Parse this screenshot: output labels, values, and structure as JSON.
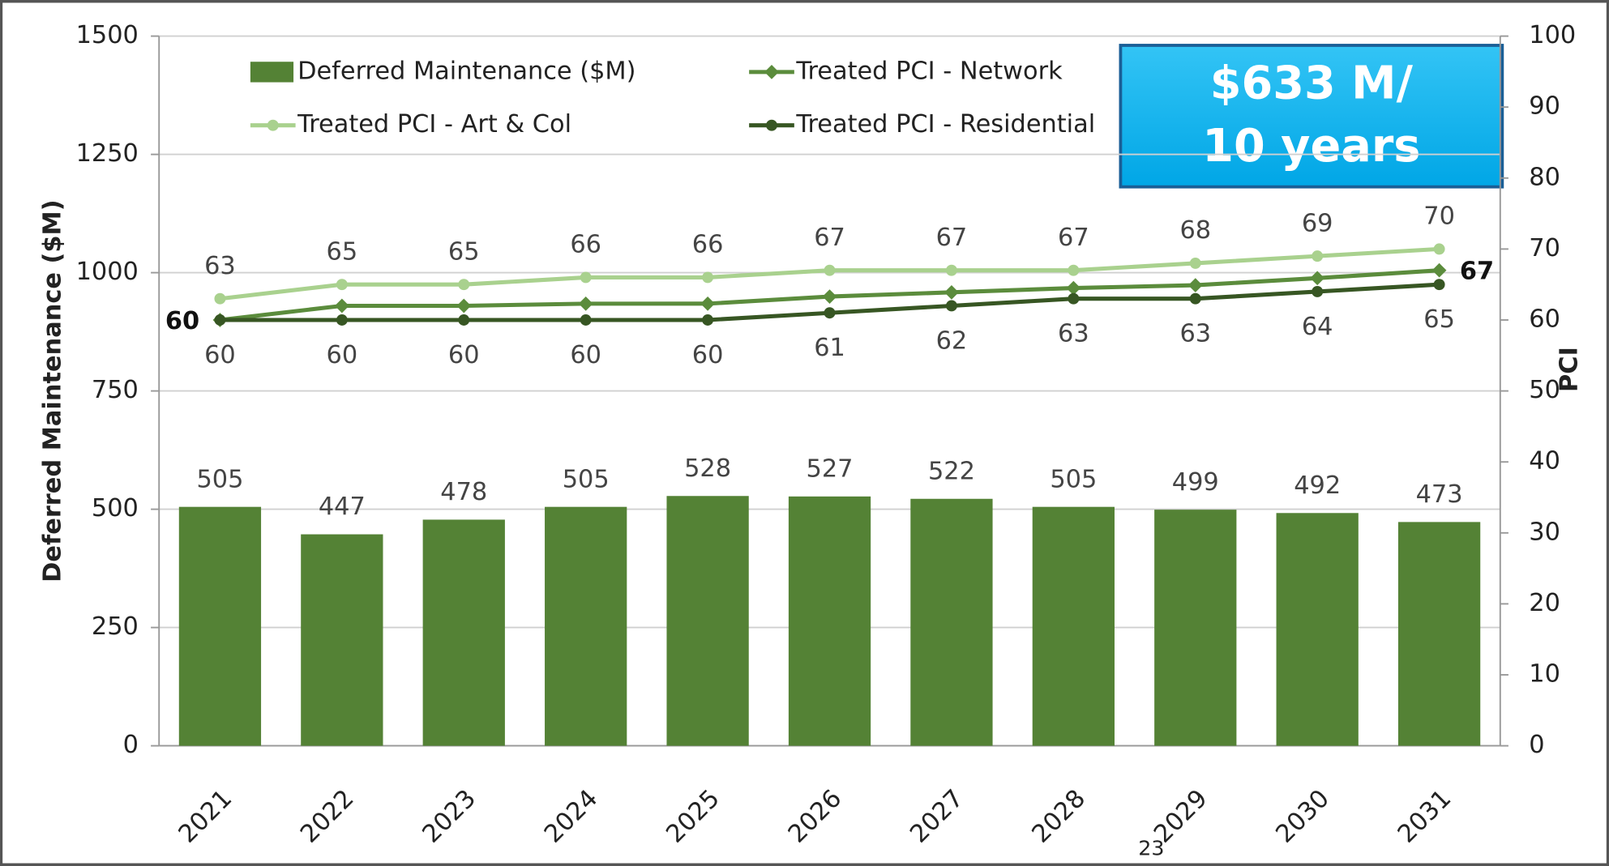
{
  "chart_data": {
    "type": "bar",
    "y_label": "Deferred Maintenance ($M)",
    "y2_label": "PCI",
    "categories": [
      "2021",
      "2022",
      "2023",
      "2024",
      "2025",
      "2026",
      "2027",
      "2028",
      "2029",
      "2030",
      "2031"
    ],
    "series": [
      {
        "name": "Deferred Maintenance ($M)",
        "type": "bar",
        "color": "#548235",
        "axis": "y",
        "values": [
          505,
          447,
          478,
          505,
          528,
          527,
          522,
          505,
          499,
          492,
          473
        ]
      },
      {
        "name": "Treated PCI - Network",
        "type": "line",
        "color": "#5b8c3c",
        "axis": "y2",
        "values": [
          60,
          62,
          62,
          62.3,
          62.3,
          63.3,
          63.9,
          64.5,
          64.9,
          65.9,
          67
        ],
        "value_labels": [
          "60",
          null,
          null,
          null,
          null,
          null,
          null,
          null,
          null,
          null,
          "67"
        ]
      },
      {
        "name": "Treated PCI - Art & Col",
        "type": "line",
        "color": "#a9d18e",
        "axis": "y2",
        "values": [
          63,
          65,
          65,
          66,
          66,
          67,
          67,
          67,
          68,
          69,
          70
        ]
      },
      {
        "name": "Treated PCI - Residential",
        "type": "line",
        "color": "#375623",
        "axis": "y2",
        "values": [
          60,
          60,
          60,
          60,
          60,
          61,
          62,
          63,
          63,
          64,
          65
        ]
      }
    ],
    "ylim": [
      0,
      1500
    ],
    "yticks": [
      0,
      250,
      500,
      750,
      1000,
      1250,
      1500
    ],
    "y2lim": [
      0,
      100
    ],
    "y2ticks": [
      0,
      10,
      20,
      30,
      40,
      50,
      60,
      70,
      80,
      90,
      100
    ],
    "grid": true,
    "annotation": [
      "$633 M/",
      "10 years"
    ],
    "page_number": "23"
  }
}
